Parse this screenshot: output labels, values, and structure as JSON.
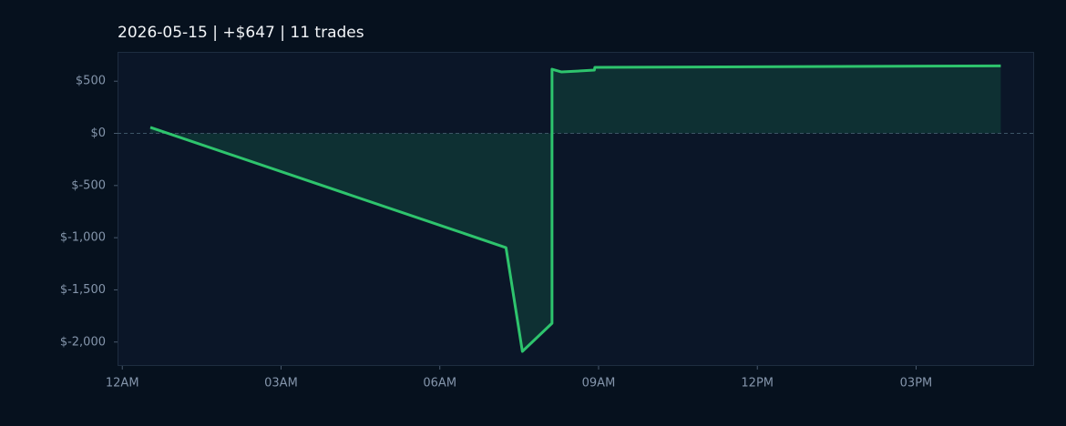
{
  "chart_data": {
    "type": "line",
    "title": "2026-05-15  |  +$647  |  11 trades",
    "x": [
      0.53,
      7.25,
      7.56,
      8.12,
      8.12,
      8.3,
      8.92,
      8.93,
      16.6
    ],
    "values": [
      57,
      -1095,
      -2090,
      -1820,
      615,
      589,
      606,
      633,
      647
    ],
    "color": "#2ec46d",
    "fill_color": "#0e3033",
    "xlim": [
      -0.09,
      17.23
    ],
    "xticks": [
      {
        "value": 0,
        "label": "12AM"
      },
      {
        "value": 3,
        "label": "03AM"
      },
      {
        "value": 6,
        "label": "06AM"
      },
      {
        "value": 9,
        "label": "09AM"
      },
      {
        "value": 12,
        "label": "12PM"
      },
      {
        "value": 15,
        "label": "03PM"
      }
    ],
    "ylim": [
      -2229,
      781
    ],
    "yticks": [
      {
        "value": -2000,
        "label": "$-2,000"
      },
      {
        "value": -1500,
        "label": "$-1,500"
      },
      {
        "value": -1000,
        "label": "$-1,000"
      },
      {
        "value": -500,
        "label": "$-500"
      },
      {
        "value": 0,
        "label": "$0"
      },
      {
        "value": 500,
        "label": "$500"
      }
    ]
  }
}
